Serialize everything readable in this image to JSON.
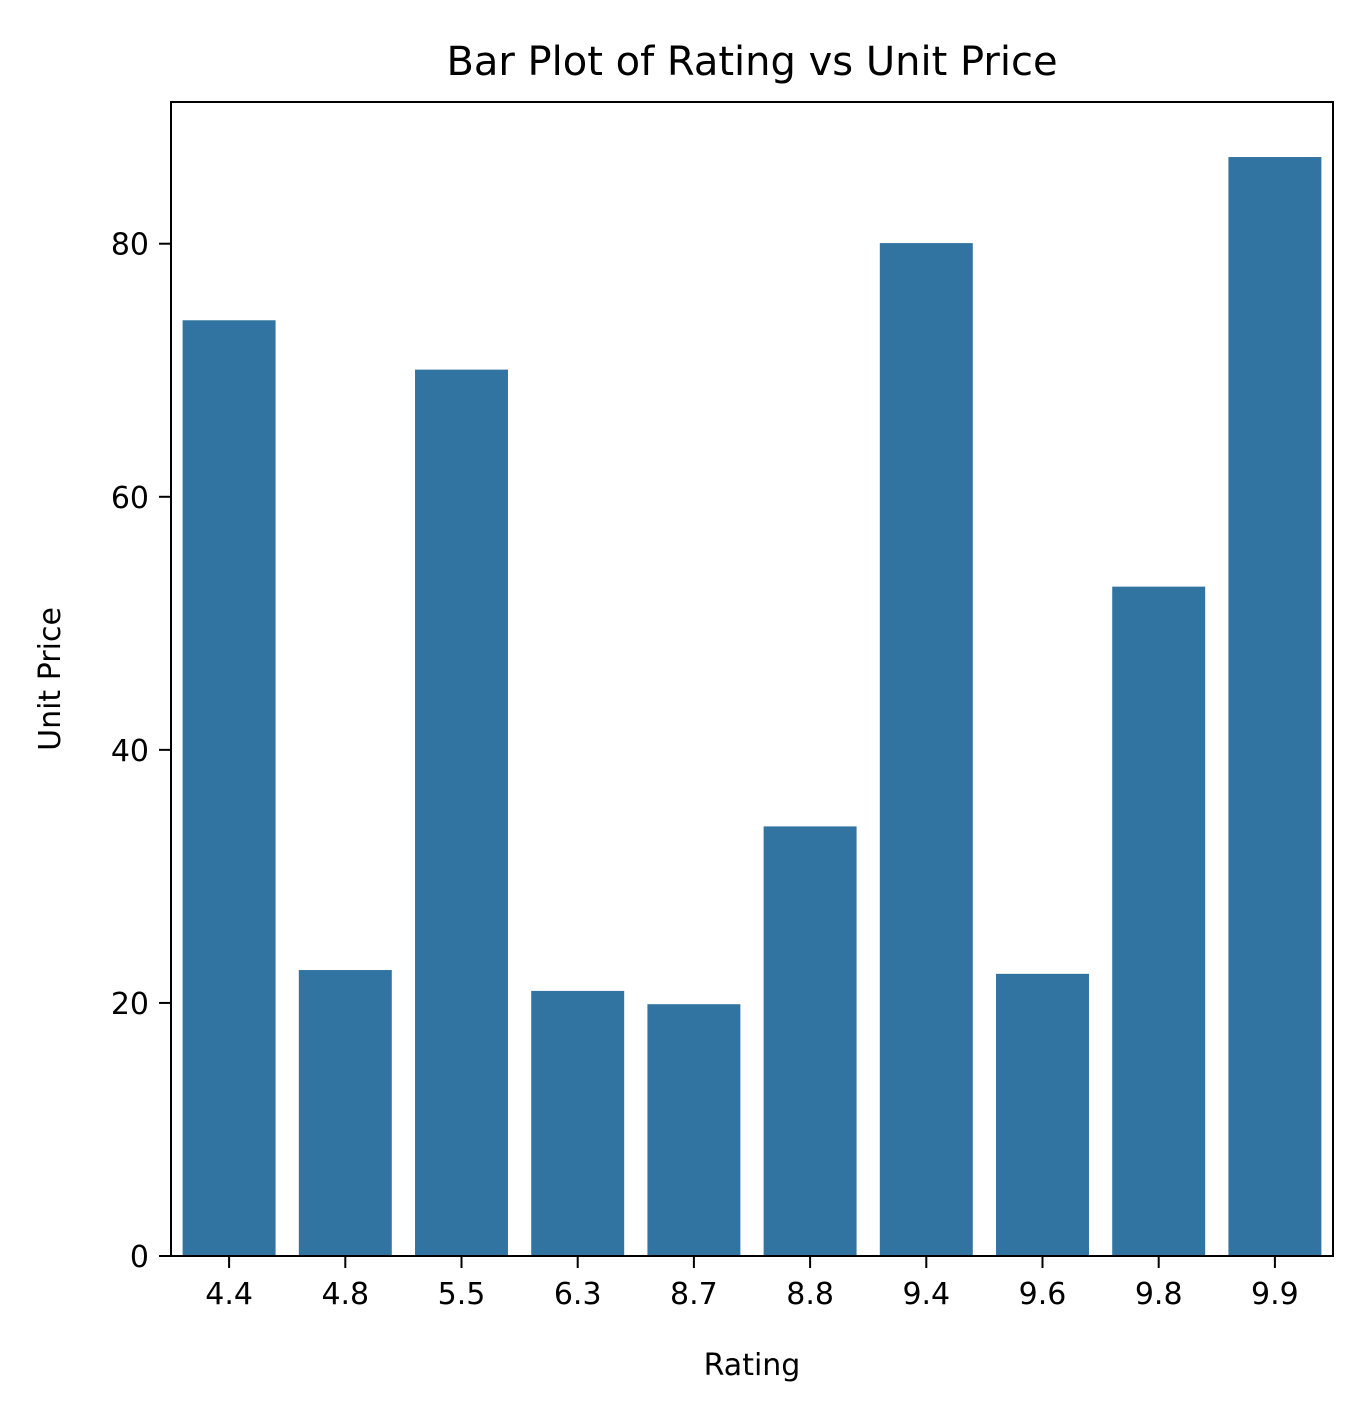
{
  "chart_data": {
    "type": "bar",
    "title": "Bar Plot of Rating vs Unit Price",
    "xlabel": "Rating",
    "ylabel": "Unit Price",
    "categories": [
      "4.4",
      "4.8",
      "5.5",
      "6.3",
      "8.7",
      "8.8",
      "9.4",
      "9.6",
      "9.8",
      "9.9"
    ],
    "values": [
      73.95,
      22.6,
      70.05,
      20.95,
      19.9,
      33.95,
      80.05,
      22.3,
      52.9,
      86.85
    ],
    "ylim": [
      0,
      91.2
    ],
    "yticks": [
      0,
      20,
      40,
      60,
      80
    ],
    "grid": false,
    "legend": "none",
    "bar_color": "#3274a1"
  }
}
